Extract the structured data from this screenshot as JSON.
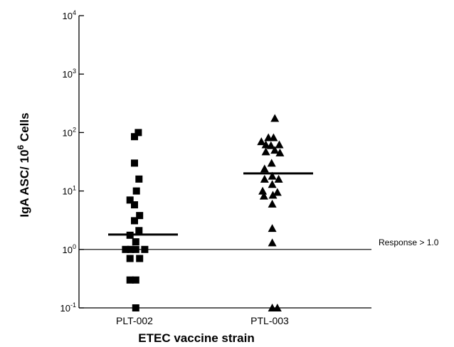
{
  "chart_data": {
    "type": "scatter",
    "scale": "log10",
    "ylim": [
      0.1,
      10000
    ],
    "yticks": [
      {
        "mantissa": "10",
        "exp": "-1"
      },
      {
        "mantissa": "10",
        "exp": "0"
      },
      {
        "mantissa": "10",
        "exp": "1"
      },
      {
        "mantissa": "10",
        "exp": "2"
      },
      {
        "mantissa": "10",
        "exp": "3"
      },
      {
        "mantissa": "10",
        "exp": "4"
      }
    ],
    "ylabel": {
      "prefix": "IgA ASC/ 10",
      "sup": "6",
      "suffix": " Cells"
    },
    "xlabel": "ETEC vaccine strain",
    "categories": [
      "PLT-002",
      "PTL-003"
    ],
    "threshold": {
      "value": 1.0,
      "label": "Response > 1.0"
    },
    "series": [
      {
        "marker": "square",
        "category": "PLT-002",
        "median": 1.8,
        "points": [
          {
            "dx": 0.0,
            "y": 85
          },
          {
            "dx": 0.6,
            "y": 100
          },
          {
            "dx": 0.0,
            "y": 30
          },
          {
            "dx": 0.7,
            "y": 16
          },
          {
            "dx": 0.3,
            "y": 10
          },
          {
            "dx": -0.7,
            "y": 7
          },
          {
            "dx": 0.0,
            "y": 5.8
          },
          {
            "dx": 0.8,
            "y": 3.8
          },
          {
            "dx": 0.0,
            "y": 3.1
          },
          {
            "dx": 0.7,
            "y": 2.1
          },
          {
            "dx": -0.7,
            "y": 1.75
          },
          {
            "dx": 0.2,
            "y": 1.35
          },
          {
            "dx": -1.4,
            "y": 1.0
          },
          {
            "dx": -0.6,
            "y": 1.0
          },
          {
            "dx": 0.2,
            "y": 1.0
          },
          {
            "dx": 1.6,
            "y": 1.0
          },
          {
            "dx": -0.7,
            "y": 0.7
          },
          {
            "dx": 0.8,
            "y": 0.7
          },
          {
            "dx": -0.7,
            "y": 0.3
          },
          {
            "dx": 0.2,
            "y": 0.3
          },
          {
            "dx": 0.2,
            "y": 0.1
          }
        ]
      },
      {
        "marker": "triangle",
        "category": "PTL-003",
        "median": 20,
        "points": [
          {
            "dx": 0.8,
            "y": 175
          },
          {
            "dx": -0.2,
            "y": 82
          },
          {
            "dx": 0.6,
            "y": 82
          },
          {
            "dx": -1.3,
            "y": 70
          },
          {
            "dx": 1.5,
            "y": 62
          },
          {
            "dx": -0.6,
            "y": 62
          },
          {
            "dx": 0.2,
            "y": 60
          },
          {
            "dx": 0.8,
            "y": 50
          },
          {
            "dx": -0.6,
            "y": 47
          },
          {
            "dx": 1.6,
            "y": 45
          },
          {
            "dx": 0.3,
            "y": 30
          },
          {
            "dx": -0.8,
            "y": 24
          },
          {
            "dx": 0.4,
            "y": 18
          },
          {
            "dx": -0.8,
            "y": 16
          },
          {
            "dx": 1.4,
            "y": 16
          },
          {
            "dx": 0.4,
            "y": 13
          },
          {
            "dx": -1.1,
            "y": 10
          },
          {
            "dx": 1.2,
            "y": 9.5
          },
          {
            "dx": -0.9,
            "y": 8.2
          },
          {
            "dx": 0.5,
            "y": 8.5
          },
          {
            "dx": 0.4,
            "y": 6.0
          },
          {
            "dx": 0.4,
            "y": 2.3
          },
          {
            "dx": 0.4,
            "y": 1.3
          },
          {
            "dx": 0.4,
            "y": 0.1
          },
          {
            "dx": 1.2,
            "y": 0.1
          }
        ]
      }
    ]
  }
}
